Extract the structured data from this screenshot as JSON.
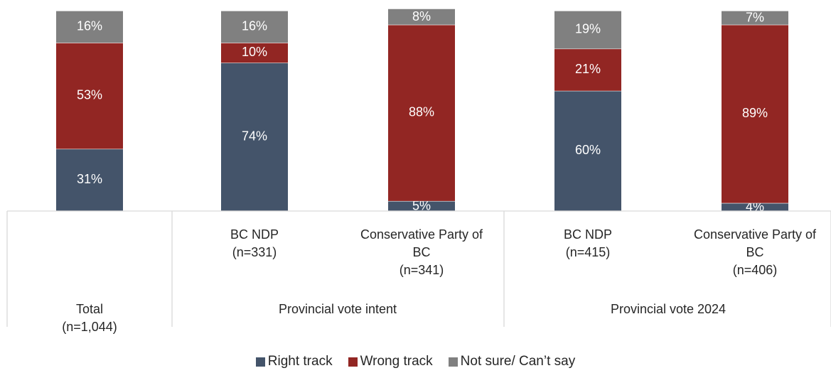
{
  "chart_data": {
    "type": "bar",
    "stacked": true,
    "categories": [
      {
        "label": [
          "Total",
          "(n=1,044)"
        ],
        "group": ""
      },
      {
        "label": [
          "BC NDP",
          "(n=331)"
        ],
        "group": "Provincial vote intent"
      },
      {
        "label": [
          "Conservative Party of",
          "BC",
          "(n=341)"
        ],
        "group": "Provincial vote intent"
      },
      {
        "label": [
          "BC NDP",
          "(n=415)"
        ],
        "group": "Provincial vote 2024"
      },
      {
        "label": [
          "Conservative Party of",
          "BC",
          "(n=406)"
        ],
        "group": "Provincial vote 2024"
      }
    ],
    "groups": [
      "Provincial vote intent",
      "Provincial vote 2024"
    ],
    "series": [
      {
        "name": "Right track",
        "color": "#44546a",
        "values": [
          31,
          74,
          5,
          60,
          4
        ],
        "labels": [
          "31%",
          "74%",
          "5%",
          "60%",
          "4%"
        ]
      },
      {
        "name": "Wrong track",
        "color": "#922623",
        "values": [
          53,
          10,
          88,
          21,
          89
        ],
        "labels": [
          "53%",
          "10%",
          "88%",
          "21%",
          "89%"
        ]
      },
      {
        "name": "Not sure/ Can’t say",
        "color": "#808080",
        "values": [
          16,
          16,
          8,
          19,
          7
        ],
        "labels": [
          "16%",
          "16%",
          "8%",
          "19%",
          "7%"
        ]
      }
    ],
    "ylim": [
      0,
      100
    ],
    "legend_position": "bottom",
    "grid": false
  }
}
